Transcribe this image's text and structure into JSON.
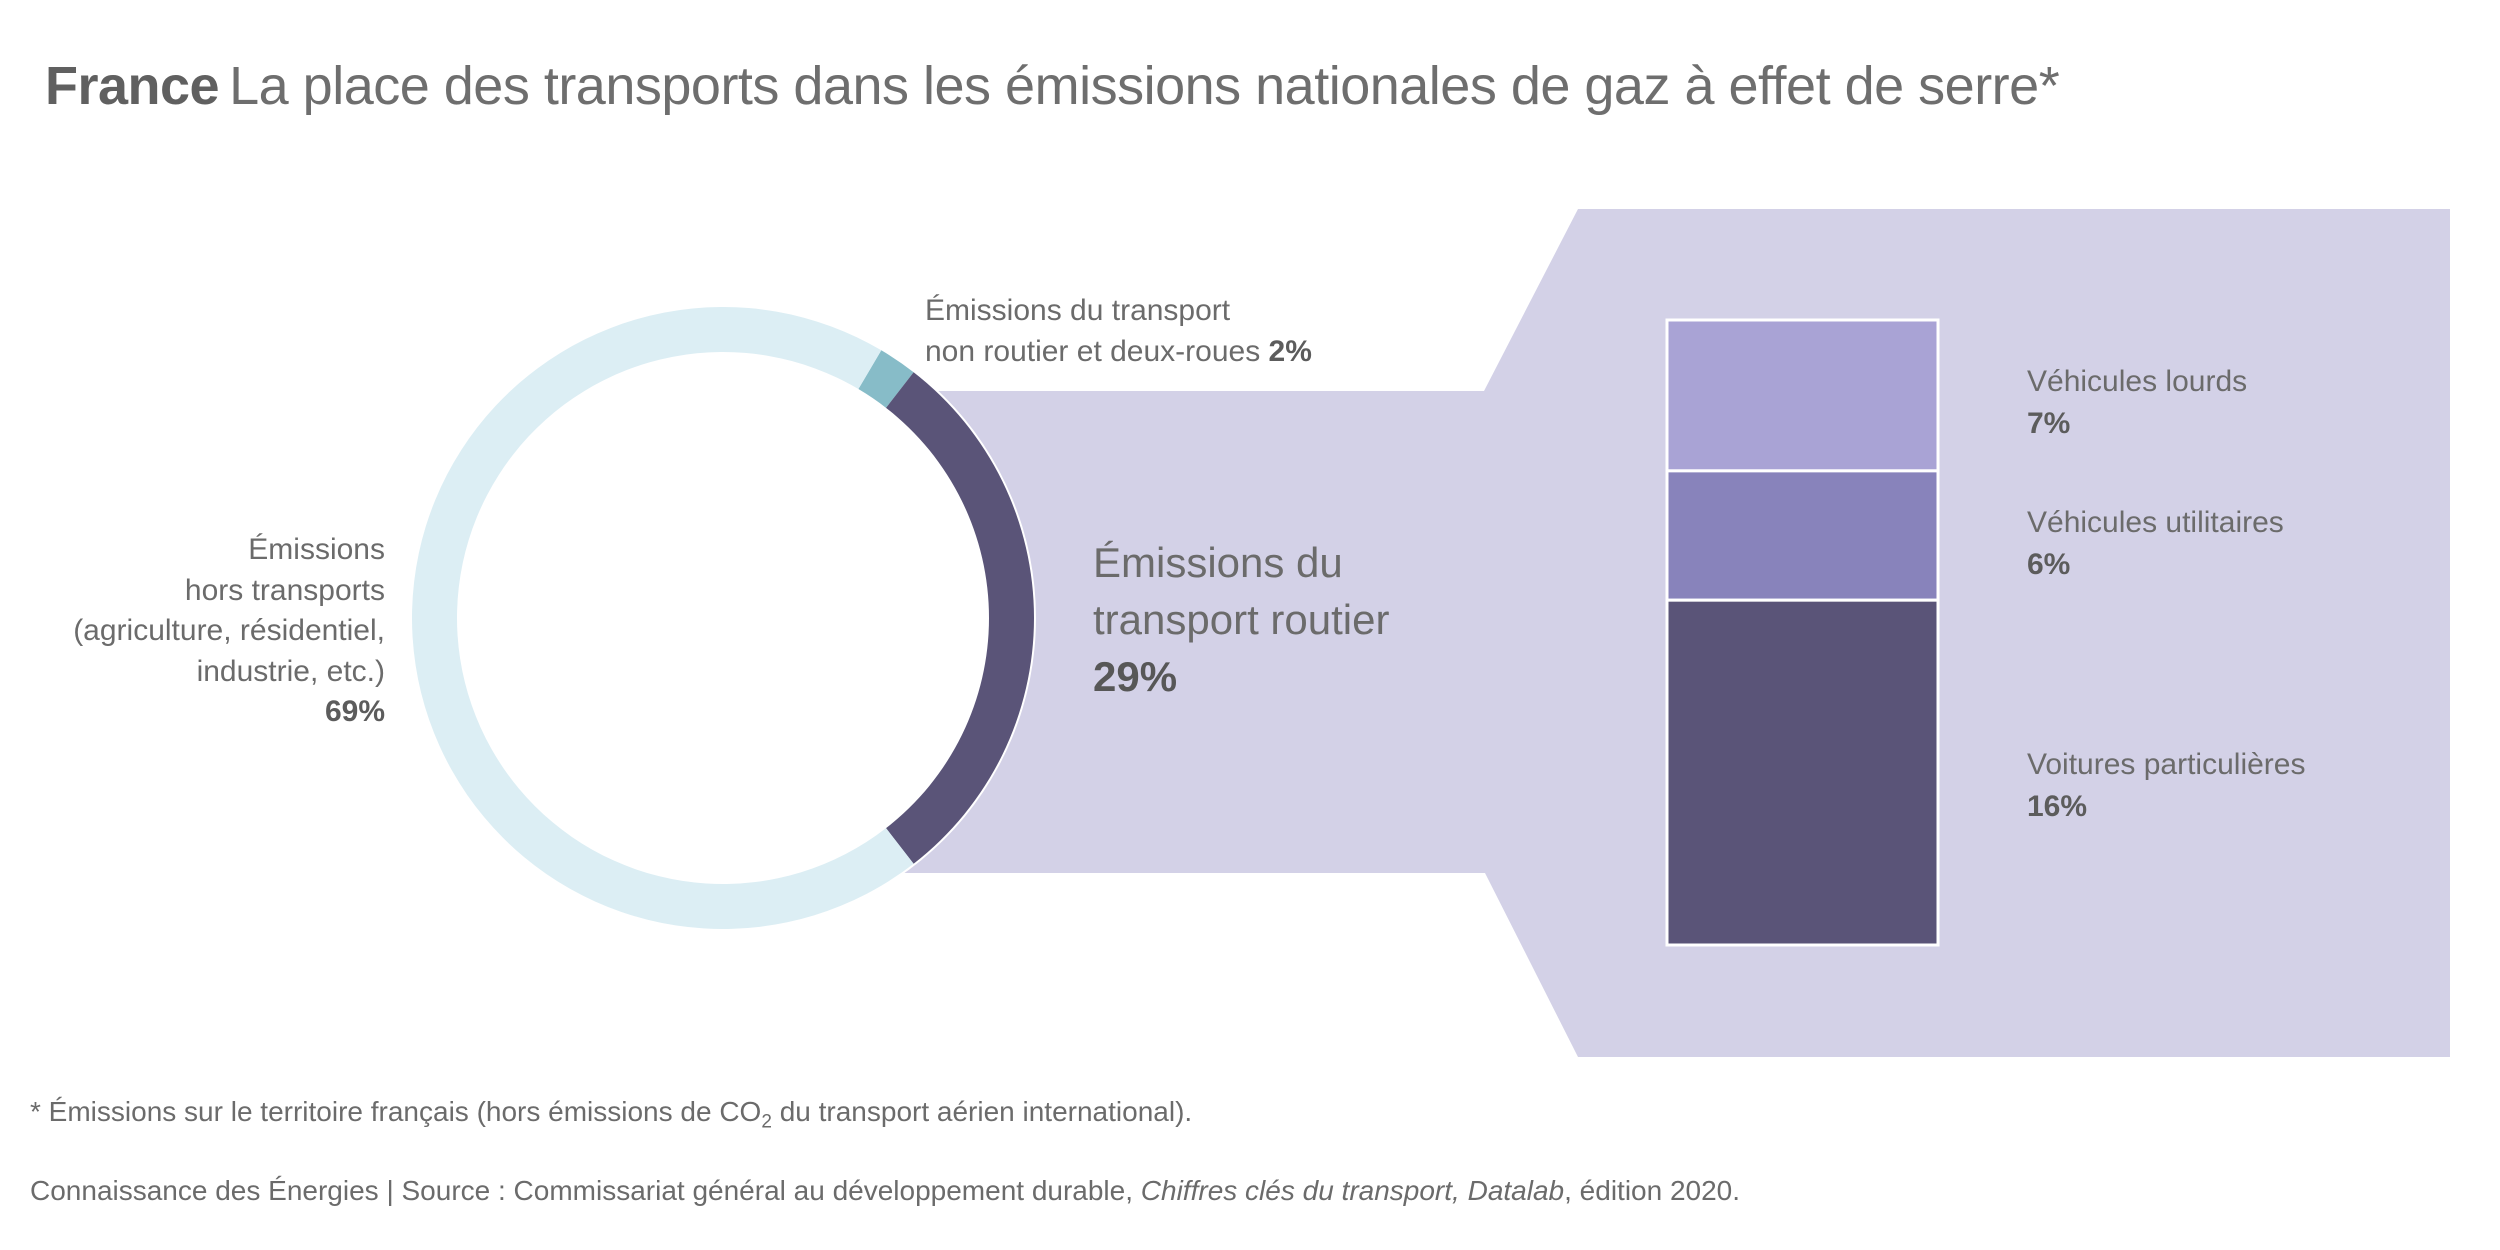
{
  "title": {
    "country": "France",
    "text": "La place des transports dans les émissions nationales de gaz à effet de serre*"
  },
  "chart_data": {
    "type": "pie",
    "subtype": "donut-with-breakout-stacked-bar",
    "title": "France — La place des transports dans les émissions nationales de gaz à effet de serre*",
    "unit": "% des émissions nationales de gaz à effet de serre",
    "donut": {
      "segments": [
        {
          "label": "Émissions hors transports (agriculture, résidentiel, industrie, etc.)",
          "value": 69,
          "color": "#dceef4"
        },
        {
          "label": "Émissions du transport non routier et deux-roues",
          "value": 2,
          "color": "#87bcc8"
        },
        {
          "label": "Émissions du transport routier",
          "value": 29,
          "color": "#5a5478"
        }
      ]
    },
    "breakout": {
      "parent_label": "Émissions du transport routier",
      "parent_value": 29,
      "segments": [
        {
          "label": "Véhicules lourds",
          "value": 7,
          "color": "#a9a3d5"
        },
        {
          "label": "Véhicules utilitaires",
          "value": 6,
          "color": "#8883bb"
        },
        {
          "label": "Voitures particulières",
          "value": 16,
          "color": "#5a5478"
        }
      ],
      "band_color": "#d3d1e7"
    }
  },
  "labels": {
    "left": {
      "line1": "Émissions",
      "line2": "hors transports",
      "line3": "(agriculture, résidentiel,",
      "line4": "industrie, etc.)",
      "value": "69%"
    },
    "top": {
      "line1": "Émissions du transport",
      "line2": "non routier et deux-roues",
      "value": "2%"
    },
    "band": {
      "line1": "Émissions du",
      "line2": "transport routier",
      "value": "29%"
    },
    "bar": [
      {
        "name": "Véhicules lourds",
        "value": "7%"
      },
      {
        "name": "Véhicules utilitaires",
        "value": "6%"
      },
      {
        "name": "Voitures particulières",
        "value": "16%"
      }
    ]
  },
  "footnote": {
    "pre": "* Émissions sur le territoire français (hors émissions de CO",
    "sub": "2",
    "post": " du transport aérien international)."
  },
  "source": {
    "pre": "Connaissance des Énergies | Source : Commissariat général au développement durable, ",
    "italic": "Chiffres clés du transport, Datalab",
    "post": ", édition 2020."
  }
}
